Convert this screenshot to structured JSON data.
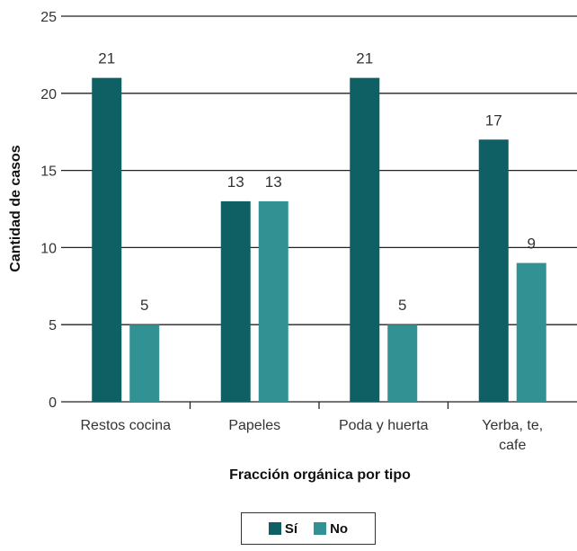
{
  "chart_data": {
    "type": "bar",
    "categories": [
      [
        "Restos cocina"
      ],
      [
        "Papeles"
      ],
      [
        "Poda y huerta"
      ],
      [
        "Yerba, te,",
        "cafe"
      ]
    ],
    "series": [
      {
        "name": "Sí",
        "values": [
          21,
          13,
          21,
          17
        ],
        "color": "#0f6064"
      },
      {
        "name": "No",
        "values": [
          5,
          13,
          5,
          9
        ],
        "color": "#319193"
      }
    ],
    "xlabel": "Fracción orgánica por tipo",
    "ylabel": "Cantidad de casos",
    "ylim": [
      0,
      25
    ],
    "yticks": [
      0,
      5,
      10,
      15,
      20,
      25
    ],
    "grid": true,
    "legend_position": "bottom"
  }
}
